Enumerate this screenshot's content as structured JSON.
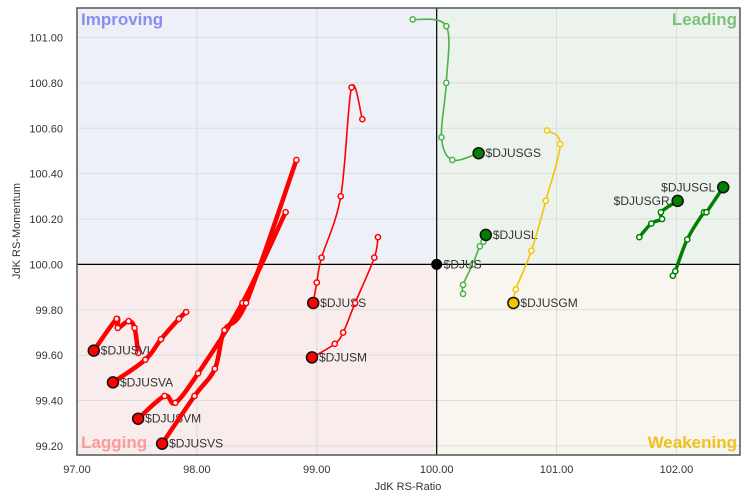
{
  "chart_data": {
    "type": "scatter",
    "subtype": "relative-rotation-graph",
    "xlabel": "JdK RS-Ratio",
    "ylabel": "JdK RS-Momentum",
    "xlim": [
      97.0,
      102.53
    ],
    "ylim": [
      99.16,
      101.13
    ],
    "x_ticks": [
      "97.00",
      "98.00",
      "99.00",
      "100.00",
      "101.00",
      "102.00"
    ],
    "y_ticks": [
      "99.20",
      "99.40",
      "99.60",
      "99.80",
      "100.00",
      "100.20",
      "100.40",
      "100.60",
      "100.80",
      "101.00"
    ],
    "grid": true,
    "center": [
      100.0,
      100.0
    ],
    "quadrants": {
      "improving": {
        "label": "Improving",
        "color": "#8c8cf0",
        "bg": "#eef0f8"
      },
      "leading": {
        "label": "Leading",
        "color": "#7cc07c",
        "bg": "#ecf3ec"
      },
      "lagging": {
        "label": "Lagging",
        "color": "#ff9a9a",
        "bg": "#f8ecec"
      },
      "weakening": {
        "label": "Weakening",
        "color": "#f0c020",
        "bg": "#f8f6ee"
      }
    },
    "benchmark": {
      "name": "$DJUS",
      "x": 100.0,
      "y": 100.0,
      "color": "#000000"
    },
    "series": [
      {
        "name": "$DJUSVL",
        "color": "#ff0000",
        "x": [
          97.51,
          97.48,
          97.43,
          97.34,
          97.33,
          97.14
        ],
        "y": [
          99.61,
          99.72,
          99.75,
          99.72,
          99.76,
          99.62
        ]
      },
      {
        "name": "$DJUSVA",
        "color": "#ff0000",
        "x": [
          97.91,
          97.85,
          97.7,
          97.57,
          97.3
        ],
        "y": [
          99.79,
          99.76,
          99.67,
          99.58,
          99.48
        ]
      },
      {
        "name": "$DJUSVM",
        "color": "#ff0000",
        "x": [
          98.74,
          98.38,
          98.01,
          97.82,
          97.73,
          97.51
        ],
        "y": [
          100.23,
          99.83,
          99.52,
          99.39,
          99.42,
          99.32
        ]
      },
      {
        "name": "$DJUSVS",
        "color": "#ff0000",
        "x": [
          98.83,
          98.41,
          98.23,
          98.15,
          97.98,
          97.71
        ],
        "y": [
          100.46,
          99.83,
          99.71,
          99.54,
          99.42,
          99.21
        ]
      },
      {
        "name": "$DJUSS",
        "color": "#ff0000",
        "x": [
          99.38,
          99.29,
          99.2,
          99.04,
          99.0,
          98.97
        ],
        "y": [
          100.64,
          100.78,
          100.3,
          100.03,
          99.92,
          99.83
        ]
      },
      {
        "name": "$DJUSM",
        "color": "#ff0000",
        "x": [
          99.51,
          99.48,
          99.32,
          99.22,
          99.15,
          98.96
        ],
        "y": [
          100.12,
          100.03,
          99.83,
          99.7,
          99.65,
          99.59
        ]
      },
      {
        "name": "$DJUSGS",
        "color": "#008000",
        "x": [
          99.8,
          100.08,
          100.08,
          100.04,
          100.13,
          100.35
        ],
        "y": [
          101.08,
          101.05,
          100.8,
          100.56,
          100.46,
          100.49
        ]
      },
      {
        "name": "$DJUSL",
        "color": "#008000",
        "x": [
          100.22,
          100.22,
          100.3,
          100.36,
          100.39,
          100.41
        ],
        "y": [
          99.87,
          99.91,
          100.0,
          100.08,
          100.1,
          100.13
        ]
      },
      {
        "name": "$DJUSGM",
        "color": "#f5c400",
        "x": [
          100.92,
          101.03,
          100.91,
          100.79,
          100.66,
          100.64
        ],
        "y": [
          100.59,
          100.53,
          100.28,
          100.06,
          99.89,
          99.83
        ]
      },
      {
        "name": "$DJUSGR",
        "color": "#008000",
        "x": [
          101.69,
          101.79,
          101.88,
          101.87,
          102.01
        ],
        "y": [
          100.12,
          100.18,
          100.2,
          100.23,
          100.28
        ]
      },
      {
        "name": "$DJUSGL",
        "color": "#008000",
        "x": [
          101.97,
          101.99,
          102.09,
          102.23,
          102.25,
          102.39
        ],
        "y": [
          99.95,
          99.97,
          100.11,
          100.23,
          100.23,
          100.34
        ]
      }
    ]
  }
}
